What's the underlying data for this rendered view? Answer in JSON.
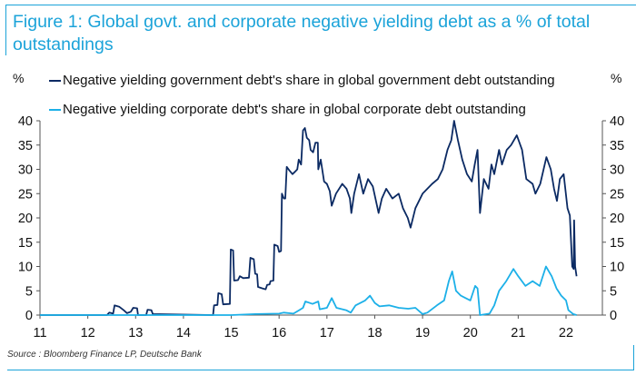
{
  "chart_data": {
    "type": "line",
    "title": "Figure 1: Global govt. and corporate negative yielding debt as a % of total outstandings",
    "ylabel_left": "%",
    "ylabel_right": "%",
    "xlim": [
      11,
      22.76
    ],
    "ylim": [
      0,
      40
    ],
    "x_ticks": [
      "11",
      "12",
      "13",
      "14",
      "15",
      "16",
      "17",
      "18",
      "19",
      "20",
      "21",
      "22"
    ],
    "y_ticks": [
      "0",
      "5",
      "10",
      "15",
      "20",
      "25",
      "30",
      "35",
      "40"
    ],
    "grid": false,
    "legend_position": "top-left",
    "source": "Source : Bloomberg Finance LP, Deutsche Bank",
    "series": [
      {
        "name": "Negative yielding government debt's share in global government debt outstanding",
        "color": "#0b2a63",
        "points": [
          [
            11,
            0
          ],
          [
            12.4,
            0
          ],
          [
            12.45,
            0.5
          ],
          [
            12.53,
            0.3
          ],
          [
            12.56,
            2
          ],
          [
            12.66,
            1.7
          ],
          [
            12.75,
            1
          ],
          [
            12.82,
            0.4
          ],
          [
            12.9,
            0.7
          ],
          [
            12.95,
            1.5
          ],
          [
            13.03,
            1.4
          ],
          [
            13.05,
            0
          ],
          [
            13.22,
            0
          ],
          [
            13.25,
            1.1
          ],
          [
            13.33,
            1.0
          ],
          [
            13.36,
            0.2
          ],
          [
            14.62,
            0
          ],
          [
            14.64,
            2
          ],
          [
            14.71,
            2.1
          ],
          [
            14.73,
            4.5
          ],
          [
            14.8,
            4.3
          ],
          [
            14.83,
            2.2
          ],
          [
            14.97,
            2.3
          ],
          [
            14.99,
            13.5
          ],
          [
            15.04,
            13.3
          ],
          [
            15.06,
            7.1
          ],
          [
            15.14,
            7.2
          ],
          [
            15.18,
            8
          ],
          [
            15.25,
            7.6
          ],
          [
            15.37,
            7.7
          ],
          [
            15.4,
            11.8
          ],
          [
            15.47,
            11.5
          ],
          [
            15.5,
            8.5
          ],
          [
            15.54,
            8.4
          ],
          [
            15.56,
            5.8
          ],
          [
            15.65,
            5.5
          ],
          [
            15.72,
            5.3
          ],
          [
            15.75,
            6.2
          ],
          [
            15.8,
            6.3
          ],
          [
            15.82,
            7
          ],
          [
            15.88,
            7.1
          ],
          [
            15.9,
            14.5
          ],
          [
            15.97,
            14.2
          ],
          [
            16.0,
            13
          ],
          [
            16.04,
            13.2
          ],
          [
            16.06,
            25
          ],
          [
            16.1,
            24
          ],
          [
            16.13,
            24
          ],
          [
            16.16,
            30.5
          ],
          [
            16.22,
            29.7
          ],
          [
            16.28,
            29
          ],
          [
            16.33,
            29.5
          ],
          [
            16.38,
            30
          ],
          [
            16.41,
            32
          ],
          [
            16.46,
            31
          ],
          [
            16.5,
            38
          ],
          [
            16.54,
            38.5
          ],
          [
            16.58,
            36.5
          ],
          [
            16.63,
            36
          ],
          [
            16.66,
            34
          ],
          [
            16.71,
            33.5
          ],
          [
            16.76,
            35.5
          ],
          [
            16.81,
            35.5
          ],
          [
            16.82,
            30
          ],
          [
            16.87,
            32
          ],
          [
            16.94,
            27.5
          ],
          [
            17.0,
            27
          ],
          [
            17.06,
            25.5
          ],
          [
            17.1,
            22.5
          ],
          [
            17.19,
            25
          ],
          [
            17.32,
            27
          ],
          [
            17.41,
            26
          ],
          [
            17.48,
            24
          ],
          [
            17.51,
            21
          ],
          [
            17.57,
            25
          ],
          [
            17.67,
            29
          ],
          [
            17.76,
            25
          ],
          [
            17.86,
            28
          ],
          [
            17.96,
            26.5
          ],
          [
            18.08,
            21
          ],
          [
            18.15,
            24
          ],
          [
            18.24,
            26
          ],
          [
            18.37,
            24
          ],
          [
            18.5,
            25
          ],
          [
            18.59,
            22
          ],
          [
            18.69,
            20
          ],
          [
            18.75,
            18
          ],
          [
            18.85,
            22
          ],
          [
            19.0,
            25
          ],
          [
            19.2,
            27
          ],
          [
            19.32,
            28
          ],
          [
            19.42,
            30
          ],
          [
            19.52,
            34
          ],
          [
            19.6,
            36
          ],
          [
            19.66,
            40
          ],
          [
            19.74,
            36
          ],
          [
            19.83,
            32
          ],
          [
            19.93,
            29
          ],
          [
            20.03,
            27.5
          ],
          [
            20.09,
            31
          ],
          [
            20.15,
            34
          ],
          [
            20.2,
            21
          ],
          [
            20.28,
            28
          ],
          [
            20.38,
            26
          ],
          [
            20.44,
            31
          ],
          [
            20.5,
            29
          ],
          [
            20.6,
            34
          ],
          [
            20.66,
            31
          ],
          [
            20.76,
            34
          ],
          [
            20.85,
            35
          ],
          [
            20.97,
            37
          ],
          [
            21.08,
            34
          ],
          [
            21.17,
            28
          ],
          [
            21.3,
            27
          ],
          [
            21.36,
            25
          ],
          [
            21.46,
            27
          ],
          [
            21.59,
            32.5
          ],
          [
            21.68,
            30
          ],
          [
            21.75,
            26
          ],
          [
            21.81,
            23.5
          ],
          [
            21.87,
            28
          ],
          [
            21.95,
            29
          ],
          [
            22.03,
            22
          ],
          [
            22.08,
            20.5
          ],
          [
            22.13,
            10
          ],
          [
            22.16,
            9.5
          ],
          [
            22.17,
            19.5
          ],
          [
            22.19,
            10
          ],
          [
            22.22,
            8
          ]
        ]
      },
      {
        "name": "Negative yielding corporate debt's share in global corporate debt outstanding",
        "color": "#1cb0e8",
        "points": [
          [
            11,
            0
          ],
          [
            15.0,
            0
          ],
          [
            15.5,
            0.2
          ],
          [
            16.0,
            0.3
          ],
          [
            16.1,
            0.5
          ],
          [
            16.3,
            0.3
          ],
          [
            16.42,
            1
          ],
          [
            16.5,
            1.5
          ],
          [
            16.55,
            2.8
          ],
          [
            16.7,
            2.3
          ],
          [
            16.82,
            2.8
          ],
          [
            16.85,
            1.2
          ],
          [
            17.0,
            1.5
          ],
          [
            17.1,
            3.5
          ],
          [
            17.2,
            1.5
          ],
          [
            17.4,
            1
          ],
          [
            17.5,
            0.5
          ],
          [
            17.6,
            2
          ],
          [
            17.8,
            3
          ],
          [
            17.9,
            4
          ],
          [
            18.0,
            2.5
          ],
          [
            18.1,
            1.8
          ],
          [
            18.3,
            2
          ],
          [
            18.5,
            1.5
          ],
          [
            18.7,
            1.3
          ],
          [
            18.85,
            1.5
          ],
          [
            19.0,
            0.2
          ],
          [
            19.1,
            0.5
          ],
          [
            19.3,
            2
          ],
          [
            19.45,
            3
          ],
          [
            19.55,
            7
          ],
          [
            19.62,
            9
          ],
          [
            19.7,
            5
          ],
          [
            19.8,
            4
          ],
          [
            19.9,
            3.5
          ],
          [
            20.0,
            3
          ],
          [
            20.1,
            6
          ],
          [
            20.15,
            5.5
          ],
          [
            20.2,
            0
          ],
          [
            20.4,
            0.3
          ],
          [
            20.5,
            2
          ],
          [
            20.6,
            5
          ],
          [
            20.75,
            7
          ],
          [
            20.9,
            9.5
          ],
          [
            21.0,
            8
          ],
          [
            21.15,
            6
          ],
          [
            21.3,
            7
          ],
          [
            21.45,
            6
          ],
          [
            21.58,
            10
          ],
          [
            21.7,
            8
          ],
          [
            21.8,
            5.5
          ],
          [
            21.9,
            4
          ],
          [
            22.0,
            3
          ],
          [
            22.05,
            1
          ],
          [
            22.15,
            0.2
          ],
          [
            22.22,
            0
          ]
        ]
      }
    ]
  }
}
